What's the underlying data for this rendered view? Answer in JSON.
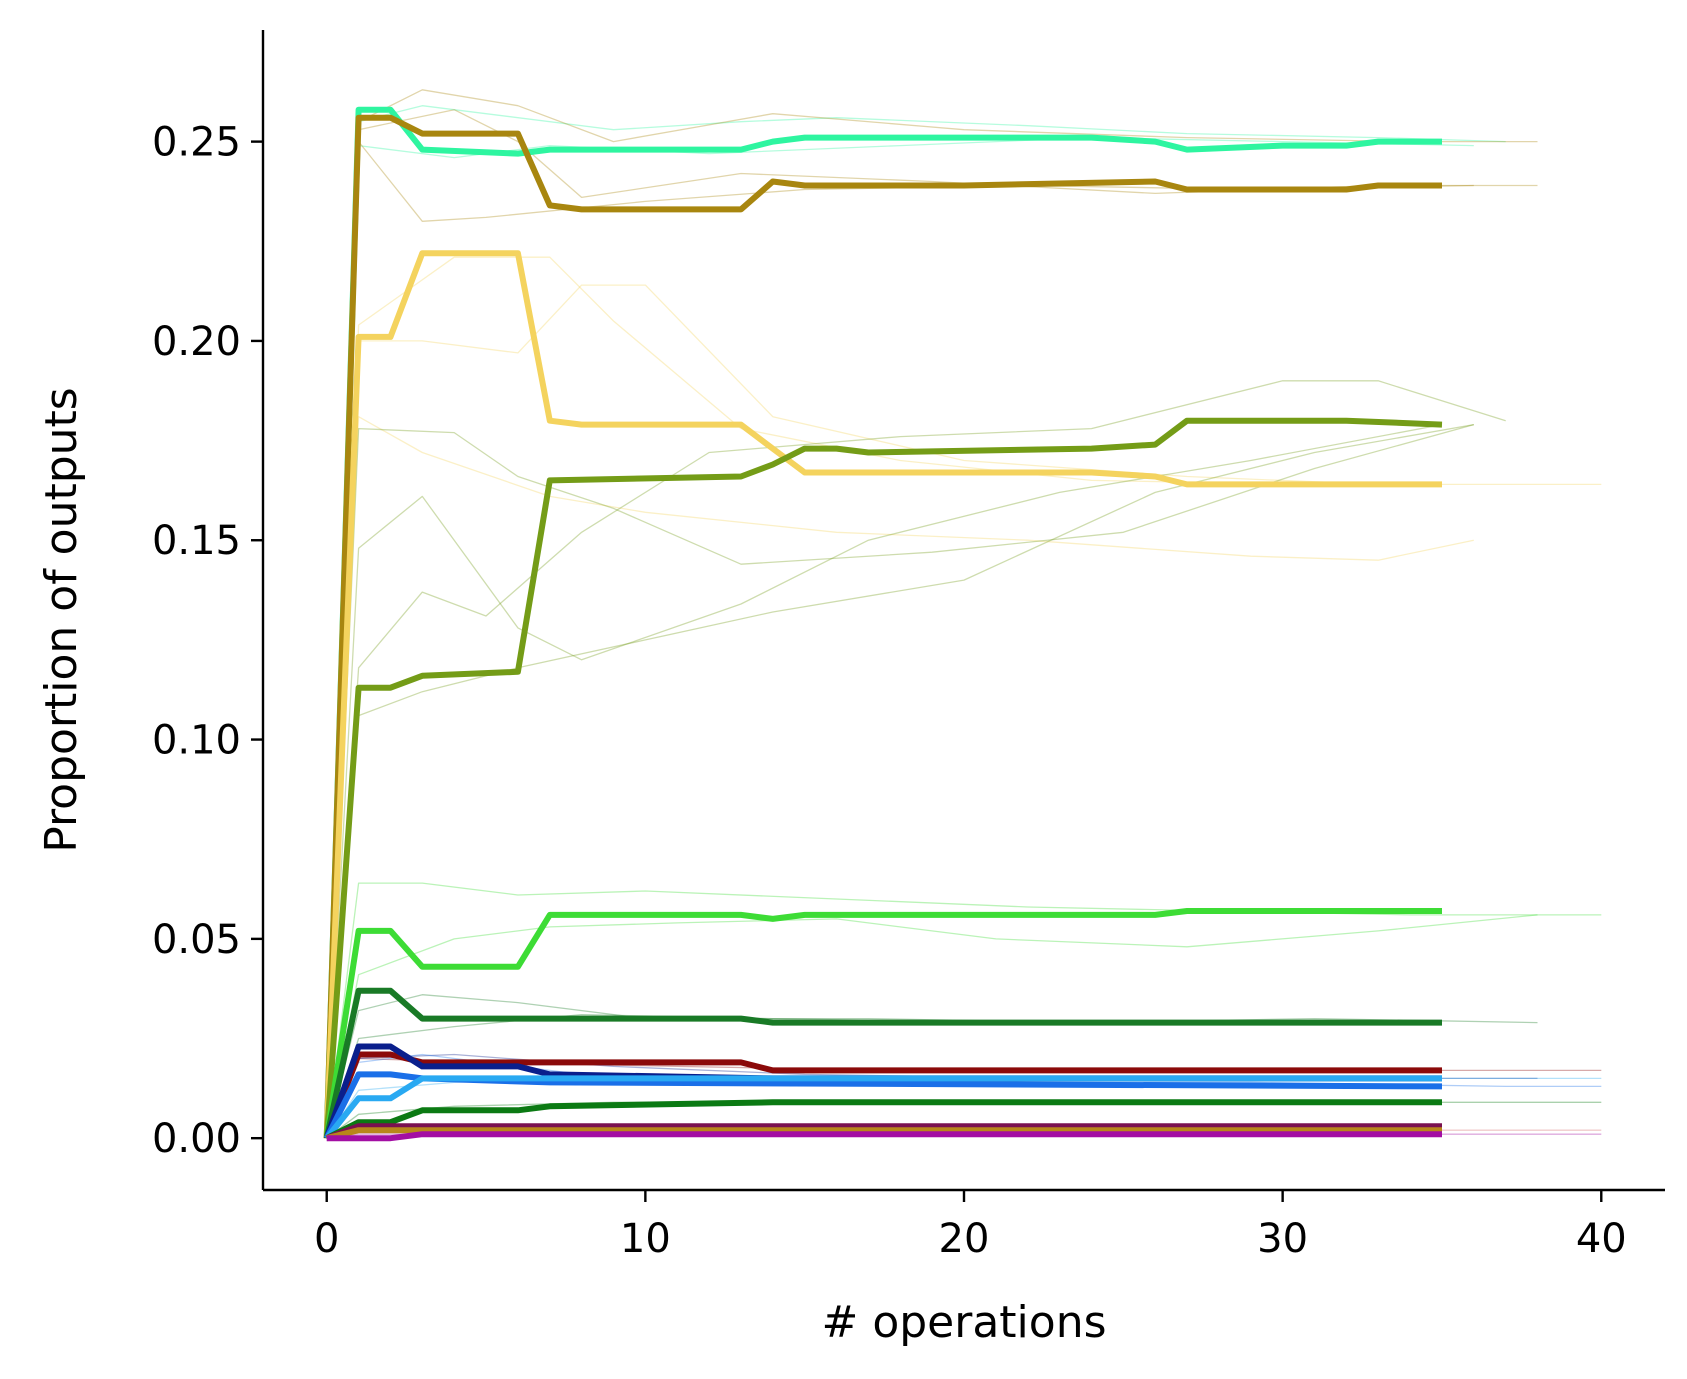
{
  "chart_data": {
    "type": "line",
    "title": "",
    "xlabel": "# operations",
    "ylabel": "Proportion of outputs",
    "xlim": [
      -2,
      42
    ],
    "ylim": [
      -0.013,
      0.278
    ],
    "xticks": [
      0,
      10,
      20,
      30,
      40
    ],
    "xtick_labels": [
      "0",
      "10",
      "20",
      "30",
      "40"
    ],
    "yticks": [
      0.0,
      0.05,
      0.1,
      0.15,
      0.2,
      0.25
    ],
    "ytick_labels": [
      "0.00",
      "0.05",
      "0.10",
      "0.15",
      "0.20",
      "0.25"
    ],
    "grid": false,
    "legend": "none",
    "series": [
      {
        "color": "#2ef5a0",
        "x": [
          0,
          1,
          2,
          3,
          6,
          7,
          13,
          14,
          15,
          16,
          20,
          24,
          26,
          27,
          30,
          32,
          33,
          35
        ],
        "y": [
          0,
          0.258,
          0.258,
          0.248,
          0.247,
          0.248,
          0.248,
          0.25,
          0.251,
          0.251,
          0.251,
          0.251,
          0.25,
          0.248,
          0.249,
          0.249,
          0.25,
          0.25
        ]
      },
      {
        "color": "#a8860f",
        "x": [
          0,
          1,
          2,
          3,
          6,
          7,
          8,
          13,
          14,
          15,
          20,
          26,
          27,
          32,
          33,
          35
        ],
        "y": [
          0,
          0.256,
          0.256,
          0.252,
          0.252,
          0.234,
          0.233,
          0.233,
          0.24,
          0.239,
          0.239,
          0.24,
          0.238,
          0.238,
          0.239,
          0.239
        ]
      },
      {
        "color": "#f4d35e",
        "x": [
          0,
          1,
          2,
          3,
          6,
          7,
          8,
          13,
          14,
          15,
          24,
          26,
          27,
          33,
          35
        ],
        "y": [
          0,
          0.201,
          0.201,
          0.222,
          0.222,
          0.18,
          0.179,
          0.179,
          0.173,
          0.167,
          0.167,
          0.166,
          0.164,
          0.164,
          0.164
        ]
      },
      {
        "color": "#749c17",
        "x": [
          0,
          1,
          2,
          3,
          6,
          7,
          13,
          14,
          15,
          16,
          17,
          24,
          26,
          27,
          32,
          35
        ],
        "y": [
          0,
          0.113,
          0.113,
          0.116,
          0.117,
          0.165,
          0.166,
          0.169,
          0.173,
          0.173,
          0.172,
          0.173,
          0.174,
          0.18,
          0.18,
          0.179
        ]
      },
      {
        "color": "#3ddc35",
        "x": [
          0,
          1,
          2,
          3,
          6,
          7,
          13,
          14,
          15,
          26,
          27,
          35
        ],
        "y": [
          0,
          0.052,
          0.052,
          0.043,
          0.043,
          0.056,
          0.056,
          0.055,
          0.056,
          0.056,
          0.057,
          0.057
        ]
      },
      {
        "color": "#197a26",
        "x": [
          0,
          1,
          2,
          3,
          8,
          13,
          14,
          15,
          26,
          27,
          35
        ],
        "y": [
          0,
          0.037,
          0.037,
          0.03,
          0.03,
          0.03,
          0.029,
          0.029,
          0.029,
          0.029,
          0.029
        ]
      },
      {
        "color": "#8b0a0a",
        "x": [
          0,
          1,
          2,
          3,
          13,
          14,
          35
        ],
        "y": [
          0,
          0.021,
          0.021,
          0.019,
          0.019,
          0.017,
          0.017
        ]
      },
      {
        "color": "#0a1f8c",
        "x": [
          0,
          1,
          2,
          3,
          6,
          7,
          14,
          35
        ],
        "y": [
          0,
          0.023,
          0.023,
          0.018,
          0.018,
          0.016,
          0.015,
          0.015
        ]
      },
      {
        "color": "#1a6fe8",
        "x": [
          0,
          1,
          2,
          3,
          7,
          35
        ],
        "y": [
          0,
          0.016,
          0.016,
          0.015,
          0.014,
          0.013
        ]
      },
      {
        "color": "#29a9f2",
        "x": [
          0,
          1,
          2,
          3,
          7,
          35
        ],
        "y": [
          0,
          0.01,
          0.01,
          0.015,
          0.015,
          0.015
        ]
      },
      {
        "color": "#0b7a13",
        "x": [
          0,
          1,
          2,
          3,
          6,
          7,
          14,
          15,
          35
        ],
        "y": [
          0,
          0.004,
          0.004,
          0.007,
          0.007,
          0.008,
          0.009,
          0.009,
          0.009
        ]
      },
      {
        "color": "#7a1050",
        "x": [
          0,
          1,
          35
        ],
        "y": [
          0,
          0.003,
          0.003
        ]
      },
      {
        "color": "#b8861b",
        "x": [
          0,
          1,
          35
        ],
        "y": [
          0,
          0.002,
          0.002
        ]
      },
      {
        "color": "#a30ea3",
        "x": [
          0,
          1,
          2,
          3,
          35
        ],
        "y": [
          0,
          0.0,
          0.0,
          0.001,
          0.001
        ]
      }
    ],
    "faint_runs": [
      {
        "color": "#2ef5a0",
        "x": [
          0,
          1,
          3,
          5,
          9,
          13,
          16,
          22,
          27,
          33,
          37
        ],
        "y": [
          0,
          0.255,
          0.259,
          0.257,
          0.253,
          0.255,
          0.256,
          0.254,
          0.252,
          0.251,
          0.25
        ]
      },
      {
        "color": "#2ef5a0",
        "x": [
          0,
          1,
          4,
          7,
          12,
          18,
          24,
          30,
          36
        ],
        "y": [
          0,
          0.249,
          0.246,
          0.249,
          0.247,
          0.249,
          0.251,
          0.25,
          0.249
        ]
      },
      {
        "color": "#a8860f",
        "x": [
          0,
          1,
          3,
          6,
          9,
          14,
          20,
          27,
          34,
          38
        ],
        "y": [
          0,
          0.255,
          0.263,
          0.259,
          0.25,
          0.257,
          0.253,
          0.251,
          0.25,
          0.25
        ]
      },
      {
        "color": "#a8860f",
        "x": [
          0,
          1,
          4,
          6,
          8,
          13,
          19,
          26,
          33,
          38
        ],
        "y": [
          0,
          0.253,
          0.258,
          0.25,
          0.236,
          0.242,
          0.24,
          0.237,
          0.239,
          0.239
        ]
      },
      {
        "color": "#a8860f",
        "x": [
          0,
          1,
          3,
          5,
          10,
          15,
          22,
          29,
          36
        ],
        "y": [
          0,
          0.25,
          0.23,
          0.231,
          0.235,
          0.238,
          0.239,
          0.238,
          0.239
        ]
      },
      {
        "color": "#f4d35e",
        "x": [
          0,
          1,
          4,
          7,
          9,
          13,
          18,
          24,
          31,
          36,
          40
        ],
        "y": [
          0,
          0.204,
          0.221,
          0.221,
          0.205,
          0.178,
          0.17,
          0.165,
          0.164,
          0.164,
          0.164
        ]
      },
      {
        "color": "#f4d35e",
        "x": [
          0,
          1,
          3,
          6,
          8,
          10,
          14,
          20,
          27,
          33
        ],
        "y": [
          0,
          0.2,
          0.2,
          0.197,
          0.214,
          0.214,
          0.181,
          0.17,
          0.166,
          0.164
        ]
      },
      {
        "color": "#f4d35e",
        "x": [
          0,
          1,
          3,
          7,
          10,
          16,
          22,
          29,
          33,
          36
        ],
        "y": [
          0,
          0.181,
          0.172,
          0.161,
          0.157,
          0.152,
          0.15,
          0.146,
          0.145,
          0.15
        ]
      },
      {
        "color": "#749c17",
        "x": [
          0,
          1,
          3,
          5,
          8,
          12,
          18,
          24,
          30,
          33,
          37
        ],
        "y": [
          0,
          0.118,
          0.137,
          0.131,
          0.152,
          0.172,
          0.176,
          0.178,
          0.19,
          0.19,
          0.18
        ]
      },
      {
        "color": "#749c17",
        "x": [
          0,
          1,
          4,
          6,
          9,
          13,
          19,
          25,
          31,
          36
        ],
        "y": [
          0,
          0.178,
          0.177,
          0.166,
          0.158,
          0.144,
          0.147,
          0.152,
          0.168,
          0.179
        ]
      },
      {
        "color": "#749c17",
        "x": [
          0,
          1,
          3,
          6,
          10,
          14,
          20,
          26,
          31,
          36
        ],
        "y": [
          0,
          0.106,
          0.112,
          0.118,
          0.125,
          0.132,
          0.14,
          0.162,
          0.172,
          0.179
        ]
      },
      {
        "color": "#749c17",
        "x": [
          0,
          1,
          3,
          6,
          8,
          13,
          17,
          23,
          29,
          35
        ],
        "y": [
          0,
          0.148,
          0.161,
          0.128,
          0.12,
          0.134,
          0.15,
          0.162,
          0.17,
          0.179
        ]
      },
      {
        "color": "#3ddc35",
        "x": [
          0,
          1,
          3,
          6,
          10,
          16,
          22,
          28,
          34,
          40
        ],
        "y": [
          0,
          0.064,
          0.064,
          0.061,
          0.062,
          0.06,
          0.058,
          0.057,
          0.056,
          0.056
        ]
      },
      {
        "color": "#3ddc35",
        "x": [
          0,
          1,
          4,
          7,
          11,
          16,
          21,
          27,
          33,
          38
        ],
        "y": [
          0,
          0.041,
          0.05,
          0.053,
          0.054,
          0.055,
          0.05,
          0.048,
          0.052,
          0.056
        ]
      },
      {
        "color": "#197a26",
        "x": [
          0,
          1,
          3,
          6,
          10,
          17,
          24,
          31,
          38
        ],
        "y": [
          0,
          0.032,
          0.036,
          0.034,
          0.03,
          0.03,
          0.029,
          0.03,
          0.029
        ]
      },
      {
        "color": "#197a26",
        "x": [
          0,
          1,
          4,
          8,
          14,
          21,
          28,
          35
        ],
        "y": [
          0,
          0.025,
          0.028,
          0.031,
          0.03,
          0.029,
          0.029,
          0.029
        ]
      },
      {
        "color": "#8b0a0a",
        "x": [
          0,
          1,
          5,
          11,
          18,
          26,
          33,
          40
        ],
        "y": [
          0,
          0.02,
          0.019,
          0.018,
          0.017,
          0.017,
          0.017,
          0.017
        ]
      },
      {
        "color": "#0a1f8c",
        "x": [
          0,
          1,
          4,
          9,
          15,
          23,
          30,
          38
        ],
        "y": [
          0,
          0.02,
          0.021,
          0.018,
          0.016,
          0.015,
          0.015,
          0.015
        ]
      },
      {
        "color": "#1a6fe8",
        "x": [
          0,
          1,
          3,
          8,
          14,
          21,
          29,
          37,
          40
        ],
        "y": [
          0,
          0.019,
          0.021,
          0.016,
          0.015,
          0.014,
          0.014,
          0.013,
          0.013
        ]
      },
      {
        "color": "#29a9f2",
        "x": [
          0,
          1,
          4,
          10,
          16,
          24,
          32,
          40
        ],
        "y": [
          0,
          0.012,
          0.014,
          0.016,
          0.015,
          0.015,
          0.015,
          0.015
        ]
      },
      {
        "color": "#0b7a13",
        "x": [
          0,
          1,
          4,
          9,
          16,
          24,
          32,
          40
        ],
        "y": [
          0,
          0.006,
          0.008,
          0.009,
          0.009,
          0.009,
          0.009,
          0.009
        ]
      },
      {
        "color": "#a30ea3",
        "x": [
          0,
          1,
          10,
          20,
          30,
          40
        ],
        "y": [
          0,
          0.001,
          0.001,
          0.001,
          0.001,
          0.001
        ]
      },
      {
        "color": "#d66a6a",
        "x": [
          0,
          1,
          10,
          20,
          30,
          40
        ],
        "y": [
          0,
          0.002,
          0.002,
          0.002,
          0.002,
          0.002
        ]
      }
    ]
  }
}
